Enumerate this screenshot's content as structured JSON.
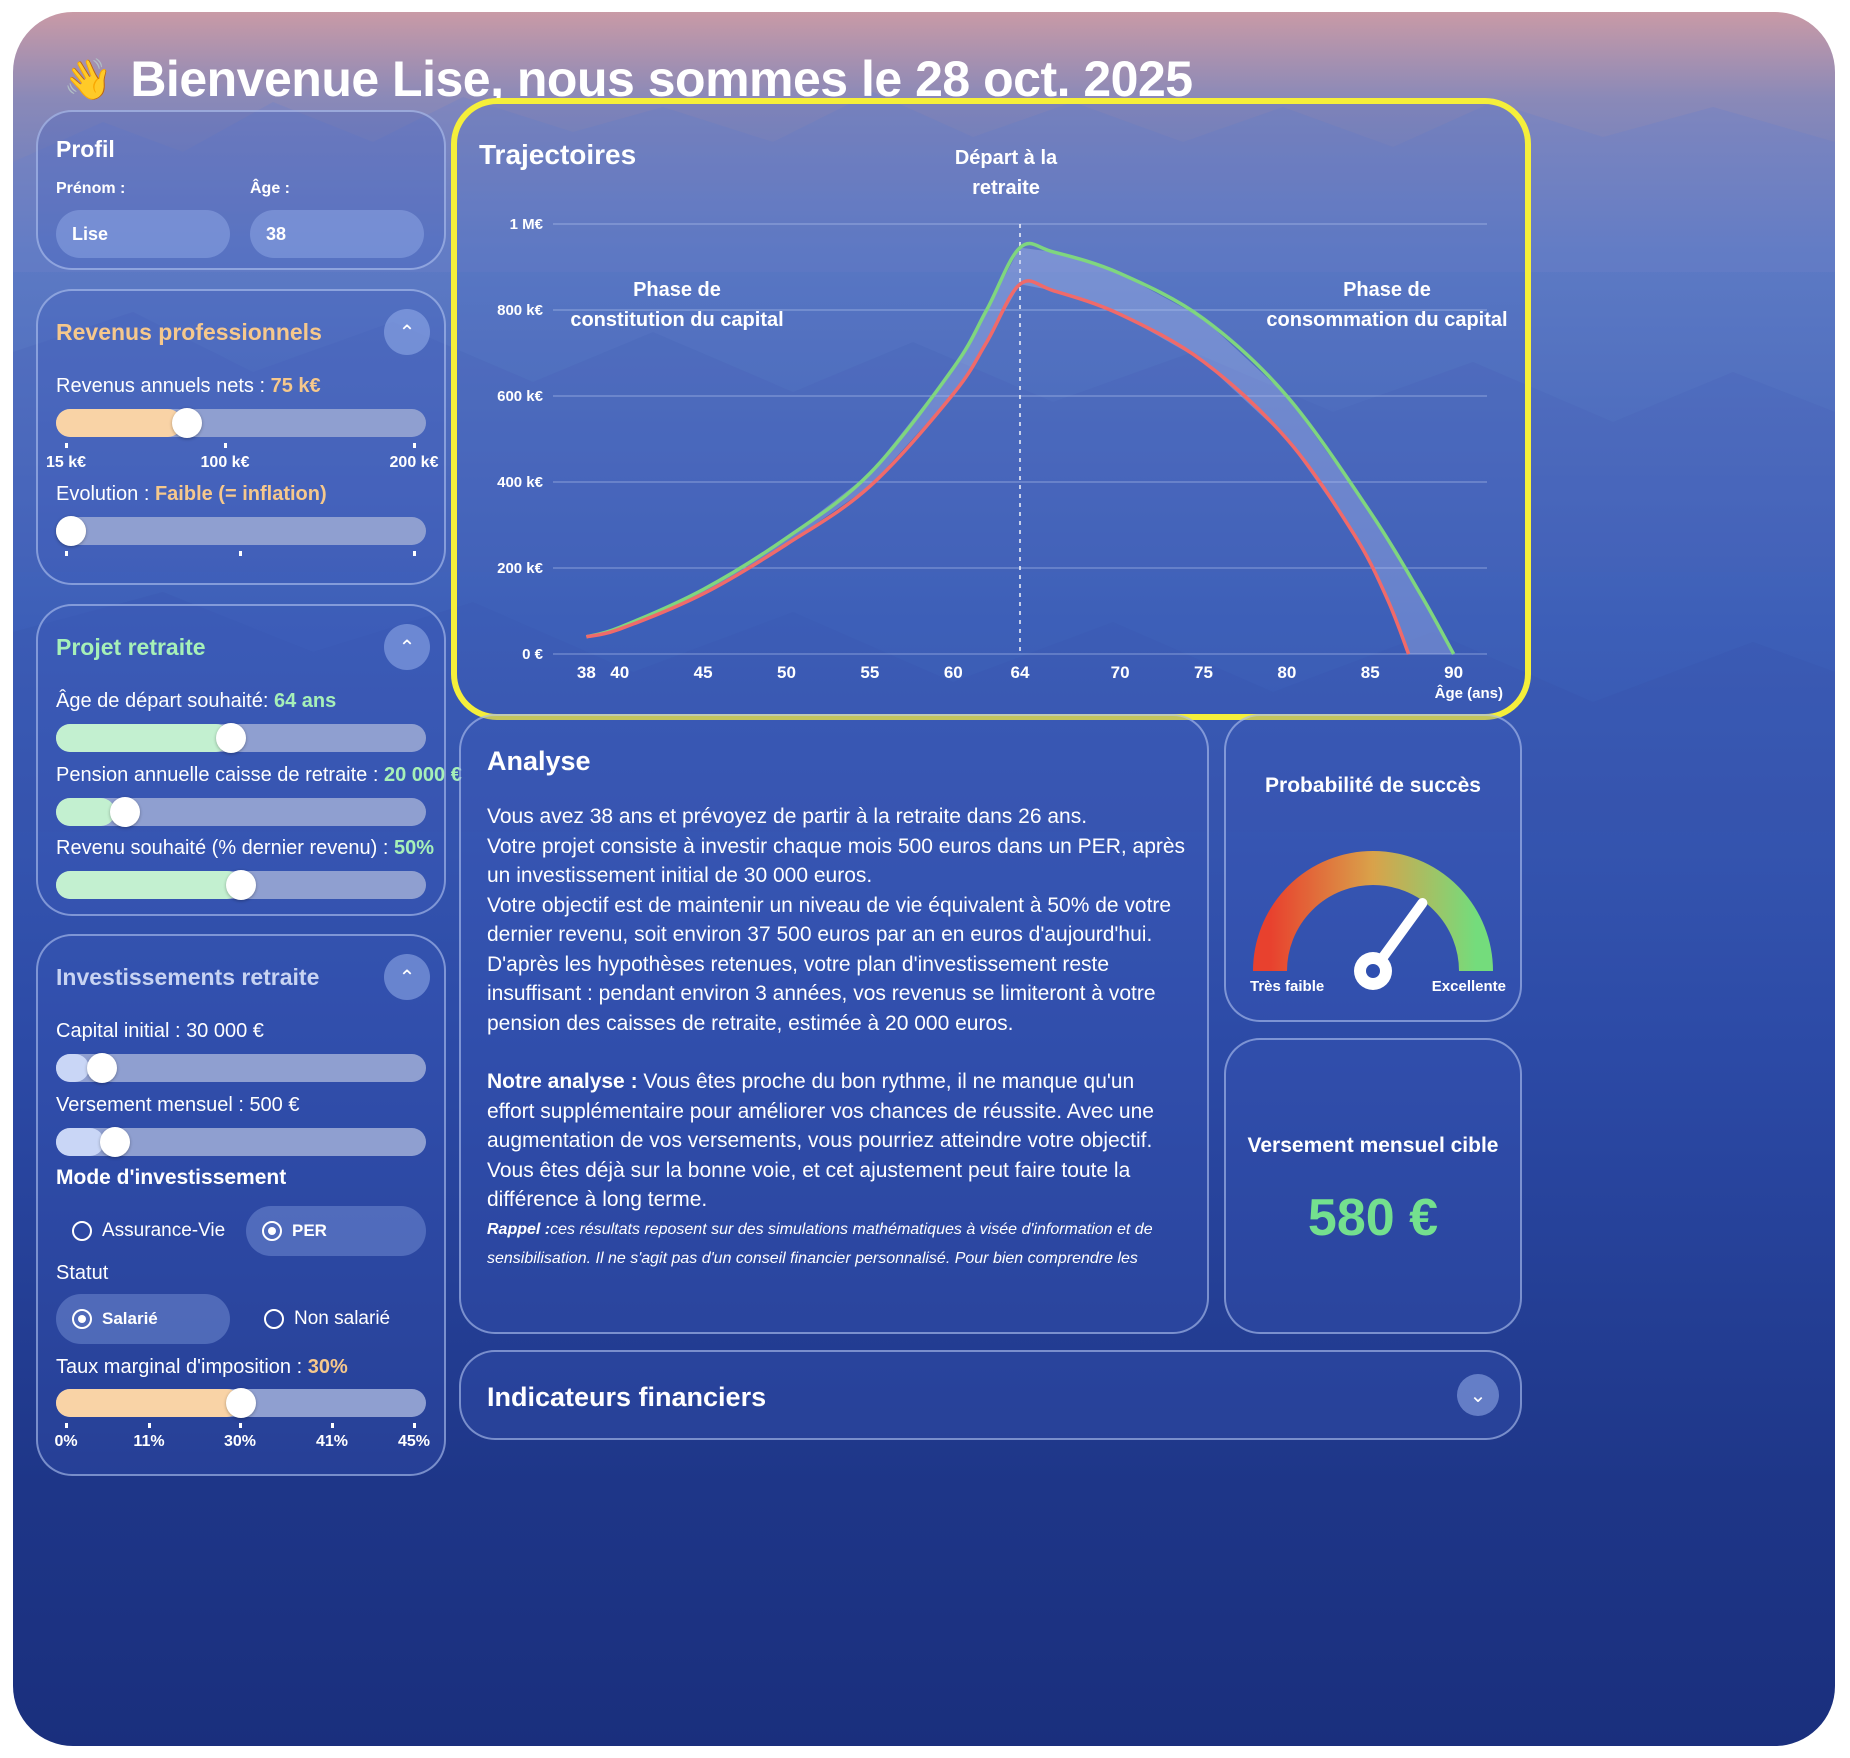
{
  "header": {
    "wave_icon": "waving-hand-icon",
    "title": "Bienvenue Lise, nous sommes le 28 oct. 2025"
  },
  "profil": {
    "title": "Profil",
    "prenom_label": "Prénom :",
    "prenom_value": "Lise",
    "age_label": "Âge :",
    "age_value": "38"
  },
  "revenus": {
    "title": "Revenus professionnels",
    "annual_label": "Revenus annuels nets : ",
    "annual_value": "75 k€",
    "annual_slider_fraction": 0.34,
    "annual_ticks": [
      "15 k€",
      "100 k€",
      "200 k€"
    ],
    "evolution_label": "Evolution : ",
    "evolution_value": "Faible (= inflation)",
    "evolution_slider_fraction": 0.0
  },
  "projet": {
    "title": "Projet retraite",
    "age_label": "Âge de départ souhaité: ",
    "age_value": "64 ans",
    "age_slider_fraction": 0.47,
    "pension_label": "Pension annuelle caisse de retraite : ",
    "pension_value": "20 000 €",
    "pension_slider_fraction": 0.16,
    "revenu_label": "Revenu souhaité (% dernier revenu) : ",
    "revenu_value": "50%",
    "revenu_slider_fraction": 0.5
  },
  "invest": {
    "title": "Investissements retraite",
    "capital_label": "Capital initial : ",
    "capital_value": "30 000 €",
    "capital_slider_fraction": 0.09,
    "versement_label": "Versement mensuel : ",
    "versement_value": "500 €",
    "versement_slider_fraction": 0.13,
    "mode_title": "Mode d'investissement",
    "mode_options": [
      "Assurance-Vie",
      "PER"
    ],
    "mode_selected": "PER",
    "statut_title": "Statut",
    "statut_options": [
      "Salarié",
      "Non salarié"
    ],
    "statut_selected": "Salarié",
    "taux_label": "Taux marginal d'imposition : ",
    "taux_value": "30%",
    "taux_slider_fraction": 0.5,
    "taux_ticks": [
      "0%",
      "11%",
      "30%",
      "41%",
      "45%"
    ]
  },
  "chart_data": {
    "type": "line",
    "title": "Trajectoires",
    "xlabel": "Âge (ans)",
    "ylabel": "",
    "xlim": [
      36,
      92
    ],
    "ylim": [
      0,
      1000
    ],
    "x_ticks": [
      38,
      40,
      45,
      50,
      55,
      60,
      64,
      70,
      75,
      80,
      85,
      90
    ],
    "y_ticks": [
      0,
      200,
      400,
      600,
      800,
      1000
    ],
    "y_tick_labels": [
      "0 €",
      "200 k€",
      "400 k€",
      "600 k€",
      "800 k€",
      "1 M€"
    ],
    "grid": true,
    "retirement_age": 64,
    "annotations": {
      "retirement": "Départ à la retraite",
      "constitution": "Phase de constitution du capital",
      "consommation": "Phase de consommation du capital"
    },
    "series": [
      {
        "color": "#7fd67f",
        "x": [
          38,
          40,
          45,
          50,
          55,
          60,
          62,
          64,
          66,
          70,
          75,
          80,
          85,
          88,
          90
        ],
        "values": [
          40,
          62,
          150,
          270,
          420,
          665,
          800,
          945,
          935,
          885,
          780,
          600,
          330,
          140,
          0
        ]
      },
      {
        "color": "#f06a6a",
        "x": [
          38,
          40,
          45,
          50,
          55,
          60,
          62,
          64,
          66,
          70,
          75,
          80,
          84,
          86,
          87.3
        ],
        "values": [
          40,
          58,
          140,
          255,
          390,
          605,
          725,
          860,
          845,
          790,
          680,
          500,
          280,
          130,
          0
        ]
      }
    ]
  },
  "analyse": {
    "title": "Analyse",
    "paragraph1": "Vous avez 38 ans et prévoyez de partir à la retraite dans 26 ans.",
    "paragraph2": "Votre projet consiste à investir chaque mois 500 euros dans un PER, après un investissement initial de 30 000 euros.",
    "paragraph3": "Votre objectif est de maintenir un niveau de vie équivalent à 50% de votre dernier revenu, soit environ 37 500 euros par an en euros d'aujourd'hui.",
    "paragraph4": "D'après les hypothèses retenues, votre plan d'investissement reste insuffisant : pendant environ 3 années, vos revenus se limiteront à votre pension des caisses de retraite, estimée à 20 000 euros.",
    "notre_label": "Notre analyse : ",
    "notre_text": "Vous êtes proche du bon rythme, il ne manque qu'un effort supplémentaire pour améliorer vos chances de réussite. Avec une augmentation de vos versements, vous pourriez atteindre votre objectif. Vous êtes déjà sur la bonne voie, et cet ajustement peut faire toute la différence à long terme.",
    "rappel_label": "Rappel :",
    "rappel_text": "ces résultats reposent sur des simulations mathématiques à visée d'information et de sensibilisation. Il ne s'agit pas d'un conseil financier personnalisé. Pour bien comprendre les"
  },
  "probabilite": {
    "title": "Probabilité de succès",
    "low_label": "Très faible",
    "high_label": "Excellente",
    "needle_fraction": 0.7,
    "gradient_colors": [
      "#e8412e",
      "#d9a24a",
      "#74dc7c"
    ]
  },
  "versement_cible": {
    "title": "Versement mensuel cible",
    "value": "580 €",
    "value_color": "#74e08e"
  },
  "indicateurs": {
    "title": "Indicateurs financiers",
    "chevron_icon": "chevron-down-icon"
  }
}
